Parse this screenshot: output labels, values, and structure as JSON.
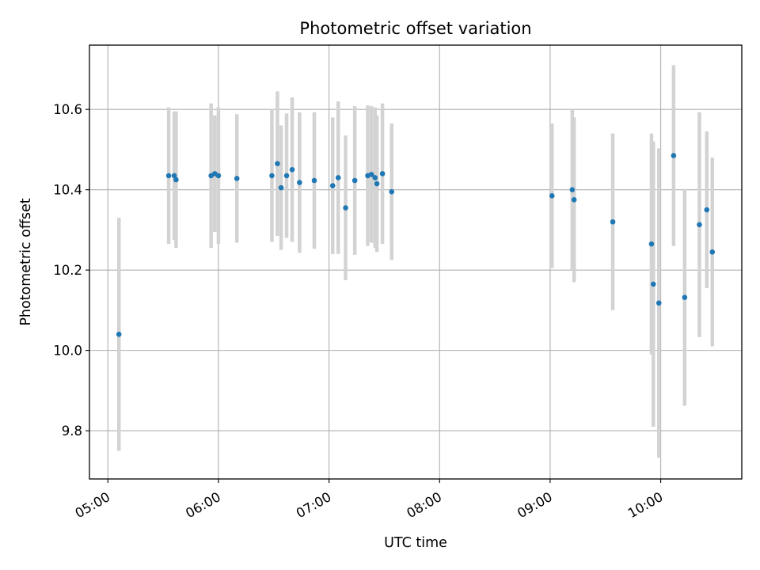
{
  "chart_data": {
    "type": "scatter",
    "title": "Photometric offset variation",
    "xlabel": "UTC time",
    "ylabel": "Photometric offset",
    "xlim": [
      "04:50",
      "10:44"
    ],
    "ylim": [
      9.68,
      10.76
    ],
    "xticks": [
      "05:00",
      "06:00",
      "07:00",
      "08:00",
      "09:00",
      "10:00"
    ],
    "yticks": [
      9.8,
      10.0,
      10.2,
      10.4,
      10.6
    ],
    "grid": true,
    "legend": "none",
    "colors": {
      "points": "#1f77b4",
      "errorbars": "#d3d3d3",
      "grid": "#b0b0b0"
    },
    "points": [
      {
        "x": "05:06",
        "y": 10.04,
        "err": 0.29
      },
      {
        "x": "05:33",
        "y": 10.435,
        "err": 0.17
      },
      {
        "x": "05:36",
        "y": 10.435,
        "err": 0.16
      },
      {
        "x": "05:37",
        "y": 10.425,
        "err": 0.17
      },
      {
        "x": "05:56",
        "y": 10.435,
        "err": 0.18
      },
      {
        "x": "05:58",
        "y": 10.44,
        "err": 0.145
      },
      {
        "x": "06:00",
        "y": 10.435,
        "err": 0.17
      },
      {
        "x": "06:10",
        "y": 10.428,
        "err": 0.16
      },
      {
        "x": "06:29",
        "y": 10.435,
        "err": 0.165
      },
      {
        "x": "06:32",
        "y": 10.465,
        "err": 0.18
      },
      {
        "x": "06:34",
        "y": 10.405,
        "err": 0.155
      },
      {
        "x": "06:37",
        "y": 10.435,
        "err": 0.155
      },
      {
        "x": "06:40",
        "y": 10.45,
        "err": 0.18
      },
      {
        "x": "06:44",
        "y": 10.418,
        "err": 0.175
      },
      {
        "x": "06:52",
        "y": 10.423,
        "err": 0.17
      },
      {
        "x": "07:02",
        "y": 10.41,
        "err": 0.17
      },
      {
        "x": "07:05",
        "y": 10.43,
        "err": 0.19
      },
      {
        "x": "07:09",
        "y": 10.355,
        "err": 0.18
      },
      {
        "x": "07:14",
        "y": 10.423,
        "err": 0.185
      },
      {
        "x": "07:21",
        "y": 10.435,
        "err": 0.175
      },
      {
        "x": "07:23",
        "y": 10.438,
        "err": 0.17
      },
      {
        "x": "07:25",
        "y": 10.43,
        "err": 0.175
      },
      {
        "x": "07:26",
        "y": 10.415,
        "err": 0.17
      },
      {
        "x": "07:29",
        "y": 10.44,
        "err": 0.175
      },
      {
        "x": "07:34",
        "y": 10.395,
        "err": 0.17
      },
      {
        "x": "09:01",
        "y": 10.385,
        "err": 0.18
      },
      {
        "x": "09:12",
        "y": 10.4,
        "err": 0.2
      },
      {
        "x": "09:13",
        "y": 10.375,
        "err": 0.205
      },
      {
        "x": "09:34",
        "y": 10.32,
        "err": 0.22
      },
      {
        "x": "09:55",
        "y": 10.265,
        "err": 0.275
      },
      {
        "x": "09:56",
        "y": 10.165,
        "err": 0.355
      },
      {
        "x": "09:59",
        "y": 10.118,
        "err": 0.385
      },
      {
        "x": "10:07",
        "y": 10.485,
        "err": 0.225
      },
      {
        "x": "10:13",
        "y": 10.132,
        "err": 0.27
      },
      {
        "x": "10:21",
        "y": 10.313,
        "err": 0.28
      },
      {
        "x": "10:25",
        "y": 10.35,
        "err": 0.195
      },
      {
        "x": "10:28",
        "y": 10.245,
        "err": 0.235
      }
    ]
  }
}
